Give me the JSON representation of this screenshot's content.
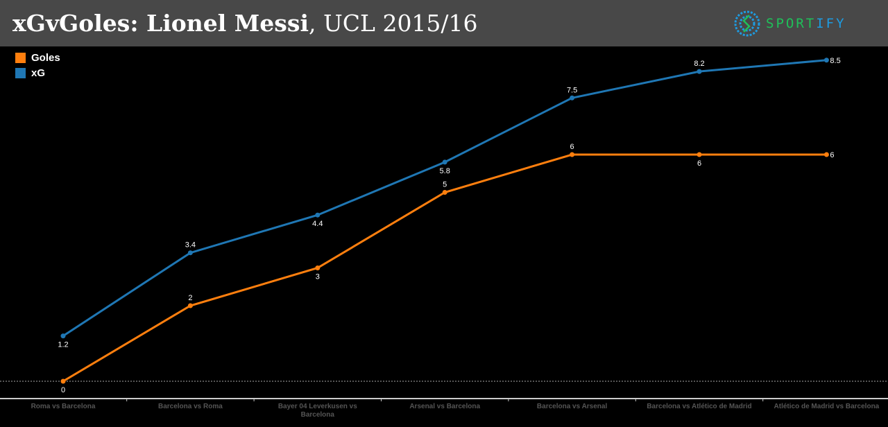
{
  "header": {
    "title_bold": "xGvGoles: Lionel Messi",
    "title_rest": ", UCL 2015/16",
    "logo_a": "SPORT",
    "logo_b": "IFY"
  },
  "colors": {
    "goles": "#ff7f0e",
    "xg": "#1f77b4",
    "logo_green": "#1fc05a",
    "logo_blue": "#1e9be0",
    "axis_text": "#555555"
  },
  "chart_data": {
    "type": "line",
    "categories": [
      "Roma  vs  Barcelona",
      "Barcelona  vs  Roma",
      "Bayer  04  Leverkusen  vs  Barcelona",
      "Arsenal  vs  Barcelona",
      "Barcelona  vs  Arsenal",
      "Barcelona  vs  Atlético  de  Madrid",
      "Atlético  de  Madrid  vs  Barcelona"
    ],
    "series": [
      {
        "name": "Goles",
        "values": [
          0,
          2,
          3,
          5,
          6,
          6,
          6
        ]
      },
      {
        "name": "xG",
        "values": [
          1.2,
          3.4,
          4.4,
          5.8,
          7.5,
          8.2,
          8.5
        ]
      }
    ],
    "legend_position": "top-left",
    "grid": false,
    "ylim": [
      0,
      9
    ]
  }
}
